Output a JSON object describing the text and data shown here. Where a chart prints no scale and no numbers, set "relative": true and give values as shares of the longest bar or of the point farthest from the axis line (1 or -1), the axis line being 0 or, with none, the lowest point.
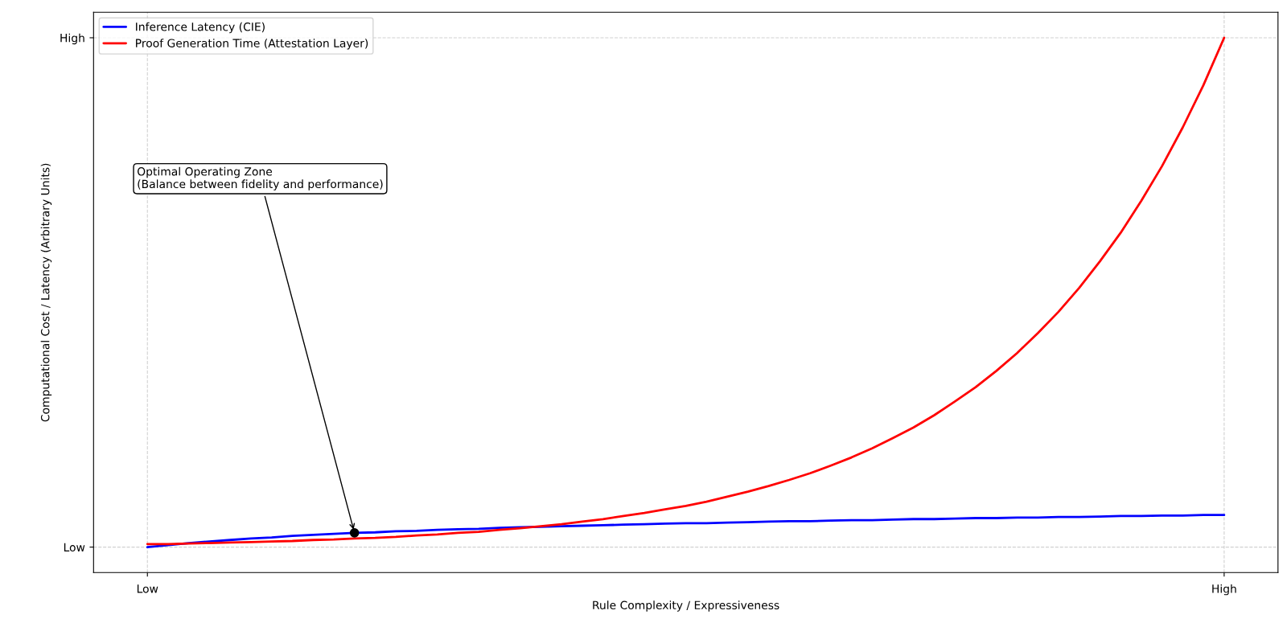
{
  "chart_data": {
    "type": "line",
    "relative": true,
    "xlabel": "Rule Complexity / Expressiveness",
    "categories": [
      "Low",
      null,
      null,
      null,
      null,
      null,
      null,
      null,
      null,
      null,
      null,
      null,
      null,
      null,
      null,
      null,
      null,
      null,
      null,
      null,
      null,
      null,
      null,
      null,
      null,
      null,
      null,
      null,
      null,
      null,
      null,
      null,
      null,
      null,
      null,
      null,
      null,
      null,
      null,
      null,
      null,
      null,
      null,
      null,
      null,
      null,
      null,
      null,
      null,
      null,
      null,
      null,
      "High"
    ],
    "grid": true,
    "legend": "top left",
    "series": [
      {
        "name": "Inference Latency (CIE)",
        "color": "#0000ff",
        "values": [
          0,
          0.004,
          0.008,
          0.011,
          0.014,
          0.017,
          0.019,
          0.022,
          0.024,
          0.026,
          0.028,
          0.029,
          0.031,
          0.032,
          0.034,
          0.035,
          0.036,
          0.038,
          0.039,
          0.04,
          0.041,
          0.042,
          0.043,
          0.044,
          0.045,
          0.046,
          0.047,
          0.047,
          0.048,
          0.049,
          0.05,
          0.051,
          0.051,
          0.052,
          0.053,
          0.053,
          0.054,
          0.055,
          0.055,
          0.056,
          0.057,
          0.057,
          0.058,
          0.058,
          0.059,
          0.059,
          0.06,
          0.061,
          0.061,
          0.062,
          0.062,
          0.063,
          0.063
        ]
      },
      {
        "name": "Proof Generation Time (Attestation Layer)",
        "color": "#ff0000",
        "values": [
          0.006,
          0.006,
          0.007,
          0.008,
          0.009,
          0.01,
          0.011,
          0.012,
          0.014,
          0.015,
          0.017,
          0.018,
          0.02,
          0.023,
          0.025,
          0.028,
          0.03,
          0.034,
          0.037,
          0.041,
          0.045,
          0.05,
          0.055,
          0.061,
          0.067,
          0.074,
          0.081,
          0.089,
          0.099,
          0.109,
          0.12,
          0.132,
          0.145,
          0.16,
          0.176,
          0.194,
          0.214,
          0.235,
          0.259,
          0.286,
          0.314,
          0.346,
          0.381,
          0.42,
          0.462,
          0.509,
          0.561,
          0.617,
          0.68,
          0.748,
          0.824,
          0.907,
          1
        ]
      },
      {
        "type": "scatter",
        "color": "#000000",
        "values": [
          null,
          null,
          null,
          null,
          null,
          null,
          null,
          null,
          null,
          null,
          0.028,
          null,
          null,
          null,
          null,
          null,
          null,
          null,
          null,
          null,
          null,
          null,
          null,
          null,
          null,
          null,
          null,
          null,
          null,
          null,
          null,
          null,
          null,
          null,
          null,
          null,
          null,
          null,
          null,
          null,
          null,
          null,
          null,
          null,
          null,
          null,
          null,
          null,
          null,
          null,
          null,
          null,
          null
        ]
      }
    ],
    "annotations": [
      "Computational Cost / Latency (Arbitrary Units)",
      "Optimal Operating Zone\n(Balance between fidelity and performance)",
      "Low",
      "High"
    ]
  }
}
